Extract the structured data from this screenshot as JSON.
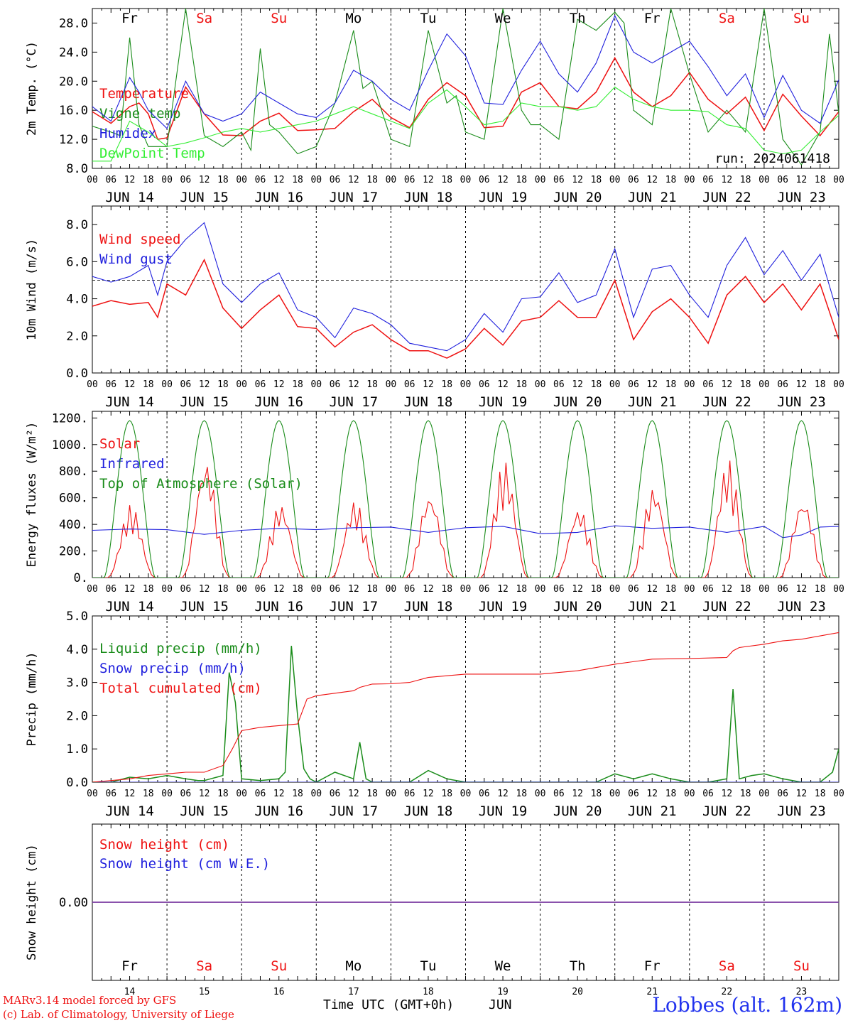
{
  "colors": {
    "red": "#ee1111",
    "green": "#1a8c1a",
    "blue": "#2020dd",
    "light_green": "#33ee33",
    "purple": "#7a3aa0",
    "black": "#000000"
  },
  "days": [
    "Fr",
    "Sa",
    "Su",
    "Mo",
    "Tu",
    "We",
    "Th",
    "Fr",
    "Sa",
    "Su"
  ],
  "weekend_days": [
    1,
    2,
    8,
    9
  ],
  "dates": [
    "JUN 14",
    "JUN 15",
    "JUN 16",
    "JUN 17",
    "JUN 18",
    "JUN 19",
    "JUN 20",
    "JUN 21",
    "JUN 22",
    "JUN 23"
  ],
  "day_numbers": [
    "14",
    "15",
    "16",
    "17",
    "18",
    "19",
    "20",
    "21",
    "22",
    "23"
  ],
  "hour_ticks": [
    "00",
    "06",
    "12",
    "18"
  ],
  "footer": {
    "credit_line1": "MARv3.14 model forced by GFS",
    "credit_line2": "(c) Lab. of Climatology, University of Liege",
    "axis_label": "Time UTC (GMT+0h)",
    "month": "JUN",
    "station": "Lobbes (alt. 162m)"
  },
  "chart_data": [
    {
      "type": "line",
      "ylabel": "2m Temp. (°C)",
      "ylim": [
        8,
        30
      ],
      "yticks": [
        "8.0",
        "12.0",
        "16.0",
        "20.0",
        "24.0",
        "28.0"
      ],
      "annotation": "run: 2024061418",
      "x_unit": "hours since JUN 14 00 UTC",
      "series": [
        {
          "name": "Temperature",
          "color": "#ee1111",
          "x": [
            0,
            6,
            12,
            15,
            18,
            21,
            24,
            30,
            36,
            42,
            48,
            54,
            60,
            66,
            72,
            78,
            84,
            90,
            96,
            102,
            108,
            114,
            120,
            126,
            132,
            138,
            144,
            150,
            156,
            162,
            168,
            174,
            180,
            186,
            192,
            198,
            204,
            210,
            216,
            222,
            228,
            234,
            240
          ],
          "values": [
            15.8,
            14.2,
            16.5,
            17,
            15.5,
            12,
            12.2,
            19.2,
            15.5,
            12.6,
            12.5,
            14.5,
            15.6,
            13.2,
            13.3,
            13.5,
            15.8,
            17.5,
            15,
            13.6,
            17.5,
            19.8,
            18,
            13.6,
            13.8,
            18.5,
            19.8,
            16.5,
            16.2,
            18.5,
            23.2,
            18.5,
            16.5,
            18,
            21.2,
            17.5,
            15.5,
            17.8,
            13.2,
            18.2,
            15.2,
            12.5,
            15.8
          ]
        },
        {
          "name": "Vigne temp",
          "color": "#1a8c1a",
          "x": [
            0,
            6,
            9,
            12,
            15,
            18,
            24,
            30,
            36,
            42,
            48,
            51,
            54,
            57,
            60,
            66,
            72,
            78,
            84,
            87,
            90,
            93,
            96,
            102,
            108,
            114,
            117,
            120,
            126,
            132,
            138,
            141,
            144,
            150,
            156,
            162,
            168,
            171,
            174,
            180,
            186,
            192,
            198,
            204,
            210,
            216,
            222,
            228,
            234,
            237,
            240
          ],
          "values": [
            13.8,
            13,
            12.5,
            26,
            14,
            11,
            11,
            30,
            12.5,
            11,
            13,
            10.5,
            24.5,
            14,
            13,
            10,
            11,
            17,
            27,
            19,
            20,
            16,
            12,
            11,
            27,
            17,
            18,
            13,
            12,
            30,
            16,
            14,
            14,
            12,
            28.5,
            27,
            29.5,
            28,
            16,
            14,
            30,
            21,
            13,
            16,
            13,
            30,
            12,
            8.5,
            13,
            26.5,
            15.6
          ]
        },
        {
          "name": "Humidex",
          "color": "#2020dd",
          "x": [
            0,
            6,
            12,
            15,
            18,
            24,
            30,
            36,
            42,
            48,
            54,
            60,
            66,
            72,
            78,
            84,
            90,
            96,
            102,
            108,
            114,
            120,
            126,
            132,
            138,
            144,
            150,
            156,
            162,
            168,
            174,
            180,
            186,
            192,
            198,
            204,
            210,
            216,
            222,
            228,
            234,
            240
          ],
          "values": [
            16.5,
            14.5,
            20.5,
            18.5,
            16,
            13.5,
            20,
            15.5,
            14.5,
            15.5,
            18.5,
            17,
            15.5,
            15,
            17,
            21.5,
            20,
            17.5,
            16,
            21.5,
            26.5,
            23.5,
            17,
            16.8,
            21.5,
            25.5,
            21,
            18.5,
            22.5,
            29,
            24,
            22.5,
            24,
            25.5,
            22,
            18,
            21,
            15,
            20.8,
            16,
            14.2,
            20.2
          ]
        },
        {
          "name": "DewPoint Temp",
          "color": "#33ee33",
          "x": [
            0,
            6,
            12,
            18,
            24,
            30,
            36,
            42,
            48,
            54,
            60,
            66,
            72,
            78,
            84,
            90,
            96,
            102,
            108,
            114,
            120,
            126,
            132,
            138,
            144,
            150,
            156,
            162,
            168,
            174,
            180,
            186,
            192,
            198,
            204,
            210,
            216,
            222,
            228,
            234,
            240
          ],
          "values": [
            9,
            9,
            14.5,
            13,
            11,
            11.5,
            12.2,
            13,
            13.5,
            13,
            13.5,
            14,
            14.5,
            15.5,
            16.5,
            15.5,
            14.5,
            13.5,
            17,
            18.8,
            16.5,
            14,
            14.5,
            17,
            16.5,
            16.5,
            16,
            16.5,
            19.2,
            17.5,
            16.5,
            16,
            16,
            15.8,
            14,
            13.5,
            10.5,
            10,
            10.5,
            13,
            15.3
          ]
        }
      ]
    },
    {
      "type": "line",
      "ylabel": "10m Wind (m/s)",
      "ylim": [
        0,
        9
      ],
      "yticks": [
        "0.0",
        "2.0",
        "4.0",
        "6.0",
        "8.0"
      ],
      "reference_line": 5.0,
      "x_unit": "hours since JUN 14 00 UTC",
      "series": [
        {
          "name": "Wind speed",
          "color": "#ee1111",
          "x": [
            0,
            6,
            12,
            18,
            21,
            24,
            30,
            36,
            42,
            48,
            54,
            60,
            66,
            72,
            78,
            84,
            90,
            96,
            102,
            108,
            114,
            120,
            126,
            132,
            138,
            144,
            150,
            156,
            162,
            168,
            174,
            180,
            186,
            192,
            198,
            204,
            210,
            216,
            222,
            228,
            234,
            240
          ],
          "values": [
            3.6,
            3.9,
            3.7,
            3.8,
            3.0,
            4.8,
            4.2,
            6.1,
            3.5,
            2.4,
            3.4,
            4.2,
            2.5,
            2.4,
            1.4,
            2.2,
            2.6,
            1.8,
            1.2,
            1.2,
            0.8,
            1.3,
            2.4,
            1.5,
            2.8,
            3.0,
            3.9,
            3.0,
            3.0,
            5.0,
            1.8,
            3.3,
            4.0,
            3.0,
            1.6,
            4.2,
            5.2,
            3.8,
            4.8,
            3.4,
            4.8,
            1.8
          ]
        },
        {
          "name": "Wind gust",
          "color": "#2020dd",
          "x": [
            0,
            6,
            12,
            18,
            21,
            24,
            30,
            36,
            42,
            48,
            54,
            60,
            66,
            72,
            78,
            84,
            90,
            96,
            102,
            108,
            114,
            120,
            126,
            132,
            138,
            144,
            150,
            156,
            162,
            168,
            174,
            180,
            186,
            192,
            198,
            204,
            210,
            216,
            222,
            228,
            234,
            240
          ],
          "values": [
            5.2,
            4.9,
            5.2,
            5.8,
            4.2,
            6.0,
            7.2,
            8.1,
            4.8,
            3.8,
            4.8,
            5.4,
            3.4,
            3.0,
            1.9,
            3.5,
            3.2,
            2.6,
            1.6,
            1.4,
            1.2,
            1.8,
            3.2,
            2.2,
            4.0,
            4.1,
            5.4,
            3.8,
            4.2,
            6.7,
            3.0,
            5.6,
            5.8,
            4.2,
            3.0,
            5.8,
            7.3,
            5.3,
            6.6,
            5.0,
            6.4,
            3.0
          ]
        }
      ]
    },
    {
      "type": "line",
      "ylabel": "Energy fluxes (W/m²)",
      "ylim": [
        0,
        1250
      ],
      "yticks": [
        "0.",
        "200.",
        "400.",
        "600.",
        "800.",
        "1000.",
        "1200."
      ],
      "x_unit": "hours since JUN 14 00 UTC",
      "series": [
        {
          "name": "Solar",
          "color": "#ee1111",
          "peaks": [
            550,
            890,
            560,
            580,
            640,
            880,
            530,
            690,
            890,
            600
          ]
        },
        {
          "name": "Infrared",
          "color": "#2020dd",
          "x": [
            0,
            12,
            24,
            36,
            48,
            60,
            72,
            84,
            96,
            108,
            120,
            132,
            144,
            156,
            168,
            180,
            192,
            204,
            216,
            222,
            228,
            234,
            240
          ],
          "values": [
            355,
            365,
            360,
            325,
            355,
            370,
            360,
            375,
            380,
            340,
            375,
            385,
            330,
            340,
            390,
            370,
            380,
            340,
            385,
            300,
            320,
            380,
            385
          ]
        },
        {
          "name": "Top of Atmosphere (Solar)",
          "color": "#1a8c1a",
          "peak": 1180
        }
      ]
    },
    {
      "type": "line",
      "ylabel": "Precip (mm/h)",
      "ylim": [
        0,
        5
      ],
      "yticks": [
        "0.0",
        "1.0",
        "2.0",
        "3.0",
        "4.0",
        "5.0"
      ],
      "x_unit": "hours since JUN 14 00 UTC",
      "series": [
        {
          "name": "Liquid precip (mm/h)",
          "color": "#1a8c1a",
          "x": [
            0,
            6,
            12,
            18,
            24,
            30,
            34,
            36,
            38,
            40,
            42,
            44,
            46,
            48,
            54,
            60,
            62,
            64,
            66,
            68,
            70,
            72,
            78,
            84,
            86,
            88,
            90,
            96,
            102,
            108,
            114,
            120,
            126,
            132,
            138,
            144,
            150,
            156,
            162,
            168,
            174,
            180,
            186,
            192,
            198,
            204,
            206,
            208,
            210,
            212,
            216,
            222,
            228,
            234,
            238,
            240
          ],
          "values": [
            0,
            0,
            0.15,
            0.1,
            0.2,
            0.1,
            0.05,
            0.05,
            0.1,
            0.15,
            0.2,
            3.3,
            2.4,
            0.1,
            0.05,
            0.1,
            0.3,
            4.1,
            2.0,
            0.4,
            0.1,
            0,
            0.3,
            0.1,
            1.2,
            0.1,
            0,
            0,
            0,
            0.35,
            0.1,
            0,
            0,
            0,
            0,
            0,
            0,
            0,
            0,
            0.25,
            0.1,
            0.25,
            0.1,
            0,
            0,
            0.1,
            2.8,
            0.1,
            0.15,
            0.2,
            0.25,
            0.1,
            0,
            0,
            0.3,
            1.0
          ]
        },
        {
          "name": "Snow precip (mm/h)",
          "color": "#2020dd",
          "x": [
            0,
            240
          ],
          "values": [
            0,
            0
          ]
        },
        {
          "name": "Total cumulated (cm)",
          "color": "#ee1111",
          "x": [
            0,
            12,
            18,
            24,
            30,
            36,
            42,
            45,
            48,
            54,
            60,
            66,
            69,
            72,
            84,
            86,
            90,
            96,
            102,
            108,
            114,
            120,
            144,
            156,
            168,
            180,
            192,
            204,
            206,
            208,
            216,
            222,
            228,
            240
          ],
          "values": [
            0,
            0.1,
            0.2,
            0.25,
            0.3,
            0.3,
            0.5,
            1.0,
            1.55,
            1.65,
            1.7,
            1.75,
            2.5,
            2.6,
            2.75,
            2.85,
            2.95,
            2.96,
            3.0,
            3.15,
            3.2,
            3.25,
            3.25,
            3.35,
            3.55,
            3.7,
            3.72,
            3.75,
            3.95,
            4.05,
            4.15,
            4.25,
            4.3,
            4.5
          ]
        }
      ]
    },
    {
      "type": "line",
      "ylabel": "Snow height (cm)",
      "ylim": [
        -1,
        1
      ],
      "yticks": [
        "0.00"
      ],
      "x_unit": "hours since JUN 14 00 UTC",
      "series": [
        {
          "name": "Snow height (cm)",
          "color": "#ee1111",
          "x": [
            0,
            240
          ],
          "values": [
            0,
            0
          ]
        },
        {
          "name": "Snow height (cm W.E.)",
          "color": "#2020dd",
          "x": [
            0,
            240
          ],
          "values": [
            0,
            0
          ]
        }
      ]
    }
  ]
}
